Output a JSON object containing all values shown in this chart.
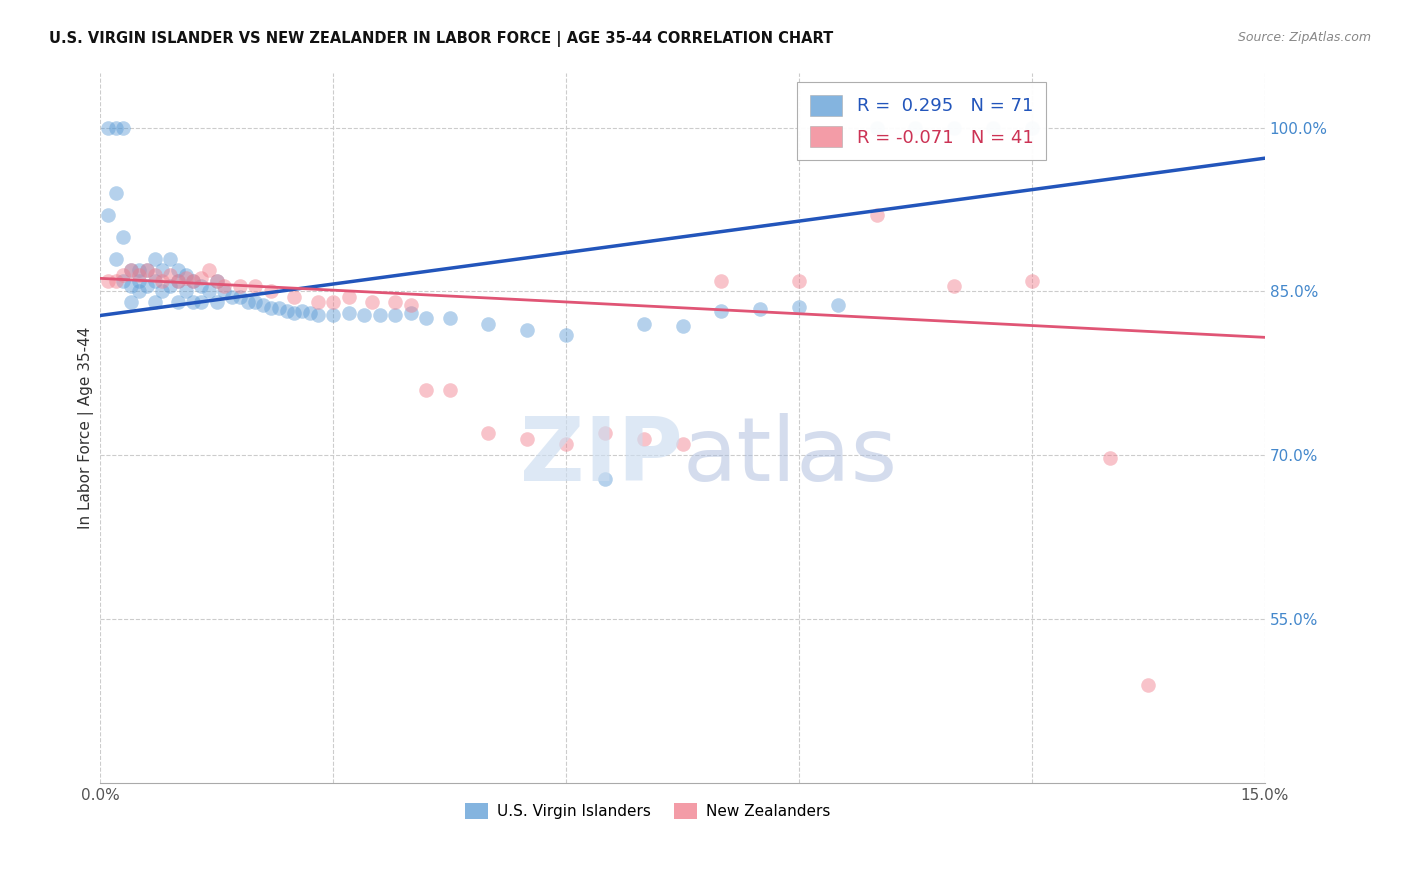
{
  "title": "U.S. VIRGIN ISLANDER VS NEW ZEALANDER IN LABOR FORCE | AGE 35-44 CORRELATION CHART",
  "source": "Source: ZipAtlas.com",
  "ylabel": "In Labor Force | Age 35-44",
  "x_min": 0.0,
  "x_max": 0.15,
  "y_min": 0.4,
  "y_max": 1.05,
  "x_ticks": [
    0.0,
    0.03,
    0.06,
    0.09,
    0.12,
    0.15
  ],
  "x_tick_labels": [
    "0.0%",
    "",
    "",
    "",
    "",
    "15.0%"
  ],
  "y_ticks": [
    0.55,
    0.7,
    0.85,
    1.0
  ],
  "y_tick_labels": [
    "55.0%",
    "70.0%",
    "85.0%",
    "100.0%"
  ],
  "blue_r": 0.295,
  "blue_n": 71,
  "pink_r": -0.071,
  "pink_n": 41,
  "blue_line_x0": 0.0,
  "blue_line_x1": 0.15,
  "blue_line_y0": 0.828,
  "blue_line_y1": 0.972,
  "pink_line_x0": 0.0,
  "pink_line_x1": 0.15,
  "pink_line_y0": 0.862,
  "pink_line_y1": 0.808,
  "scatter_size": 110,
  "scatter_alpha": 0.45,
  "blue_color": "#5b9bd5",
  "pink_color": "#f07b8a",
  "blue_line_color": "#2255bb",
  "pink_line_color": "#e05575",
  "grid_color": "#cccccc",
  "background_color": "#ffffff",
  "blue_scatter_x": [
    0.001,
    0.001,
    0.002,
    0.002,
    0.002,
    0.003,
    0.003,
    0.003,
    0.004,
    0.004,
    0.004,
    0.005,
    0.005,
    0.005,
    0.006,
    0.006,
    0.007,
    0.007,
    0.007,
    0.008,
    0.008,
    0.009,
    0.009,
    0.01,
    0.01,
    0.01,
    0.011,
    0.011,
    0.012,
    0.012,
    0.013,
    0.013,
    0.014,
    0.015,
    0.015,
    0.016,
    0.017,
    0.018,
    0.019,
    0.02,
    0.021,
    0.022,
    0.023,
    0.024,
    0.025,
    0.026,
    0.027,
    0.028,
    0.03,
    0.032,
    0.034,
    0.036,
    0.038,
    0.04,
    0.042,
    0.045,
    0.05,
    0.055,
    0.06,
    0.065,
    0.07,
    0.075,
    0.08,
    0.085,
    0.09,
    0.095,
    0.1,
    0.105,
    0.11,
    0.115,
    0.12
  ],
  "blue_scatter_y": [
    1.0,
    0.92,
    1.0,
    0.94,
    0.88,
    1.0,
    0.9,
    0.86,
    0.87,
    0.855,
    0.84,
    0.87,
    0.86,
    0.85,
    0.87,
    0.855,
    0.88,
    0.86,
    0.84,
    0.87,
    0.85,
    0.88,
    0.855,
    0.87,
    0.86,
    0.84,
    0.865,
    0.85,
    0.86,
    0.84,
    0.855,
    0.84,
    0.85,
    0.86,
    0.84,
    0.85,
    0.845,
    0.845,
    0.84,
    0.84,
    0.838,
    0.835,
    0.835,
    0.832,
    0.83,
    0.832,
    0.83,
    0.828,
    0.828,
    0.83,
    0.828,
    0.828,
    0.828,
    0.83,
    0.826,
    0.826,
    0.82,
    0.815,
    0.81,
    0.678,
    0.82,
    0.818,
    0.832,
    0.834,
    0.836,
    0.838,
    1.0,
    1.0,
    1.0,
    1.0,
    1.0
  ],
  "pink_scatter_x": [
    0.001,
    0.002,
    0.003,
    0.004,
    0.005,
    0.006,
    0.007,
    0.008,
    0.009,
    0.01,
    0.011,
    0.012,
    0.013,
    0.014,
    0.015,
    0.016,
    0.018,
    0.02,
    0.022,
    0.025,
    0.028,
    0.03,
    0.032,
    0.035,
    0.038,
    0.04,
    0.042,
    0.045,
    0.05,
    0.055,
    0.06,
    0.065,
    0.07,
    0.075,
    0.08,
    0.09,
    0.1,
    0.11,
    0.12,
    0.13,
    0.135
  ],
  "pink_scatter_y": [
    0.86,
    0.86,
    0.865,
    0.87,
    0.865,
    0.87,
    0.865,
    0.86,
    0.865,
    0.86,
    0.862,
    0.86,
    0.862,
    0.87,
    0.86,
    0.855,
    0.855,
    0.855,
    0.85,
    0.845,
    0.84,
    0.84,
    0.845,
    0.84,
    0.84,
    0.838,
    0.76,
    0.76,
    0.72,
    0.715,
    0.71,
    0.72,
    0.715,
    0.71,
    0.86,
    0.86,
    0.92,
    0.855,
    0.86,
    0.698,
    0.49
  ]
}
